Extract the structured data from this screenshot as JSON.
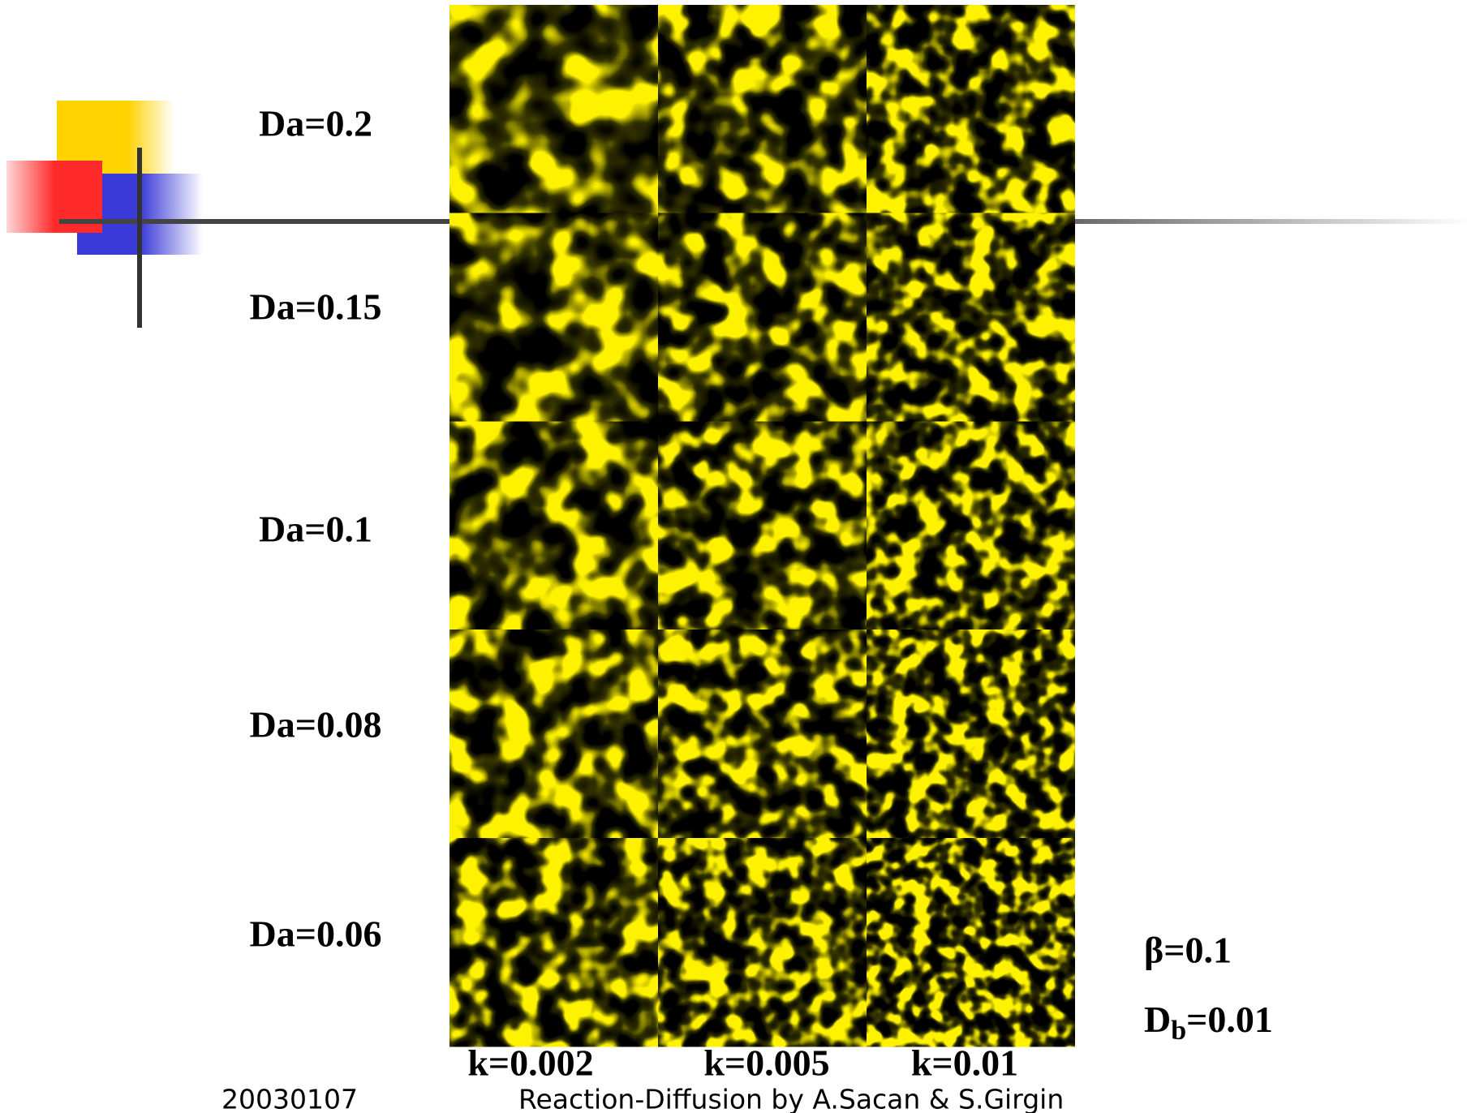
{
  "rows": [
    "Da=0.2",
    "Da=0.15",
    "Da=0.1",
    "Da=0.08",
    "Da=0.06"
  ],
  "columns": [
    "k=0.002",
    "k=0.005",
    "k=0.01"
  ],
  "params": {
    "beta": "β=0.1",
    "db_symbol": "D",
    "db_subscript": "b",
    "db_value": "=0.01"
  },
  "footer": {
    "date": "20030107",
    "text": "Reaction-Diffusion by A.Sacan & S.Girgin"
  }
}
